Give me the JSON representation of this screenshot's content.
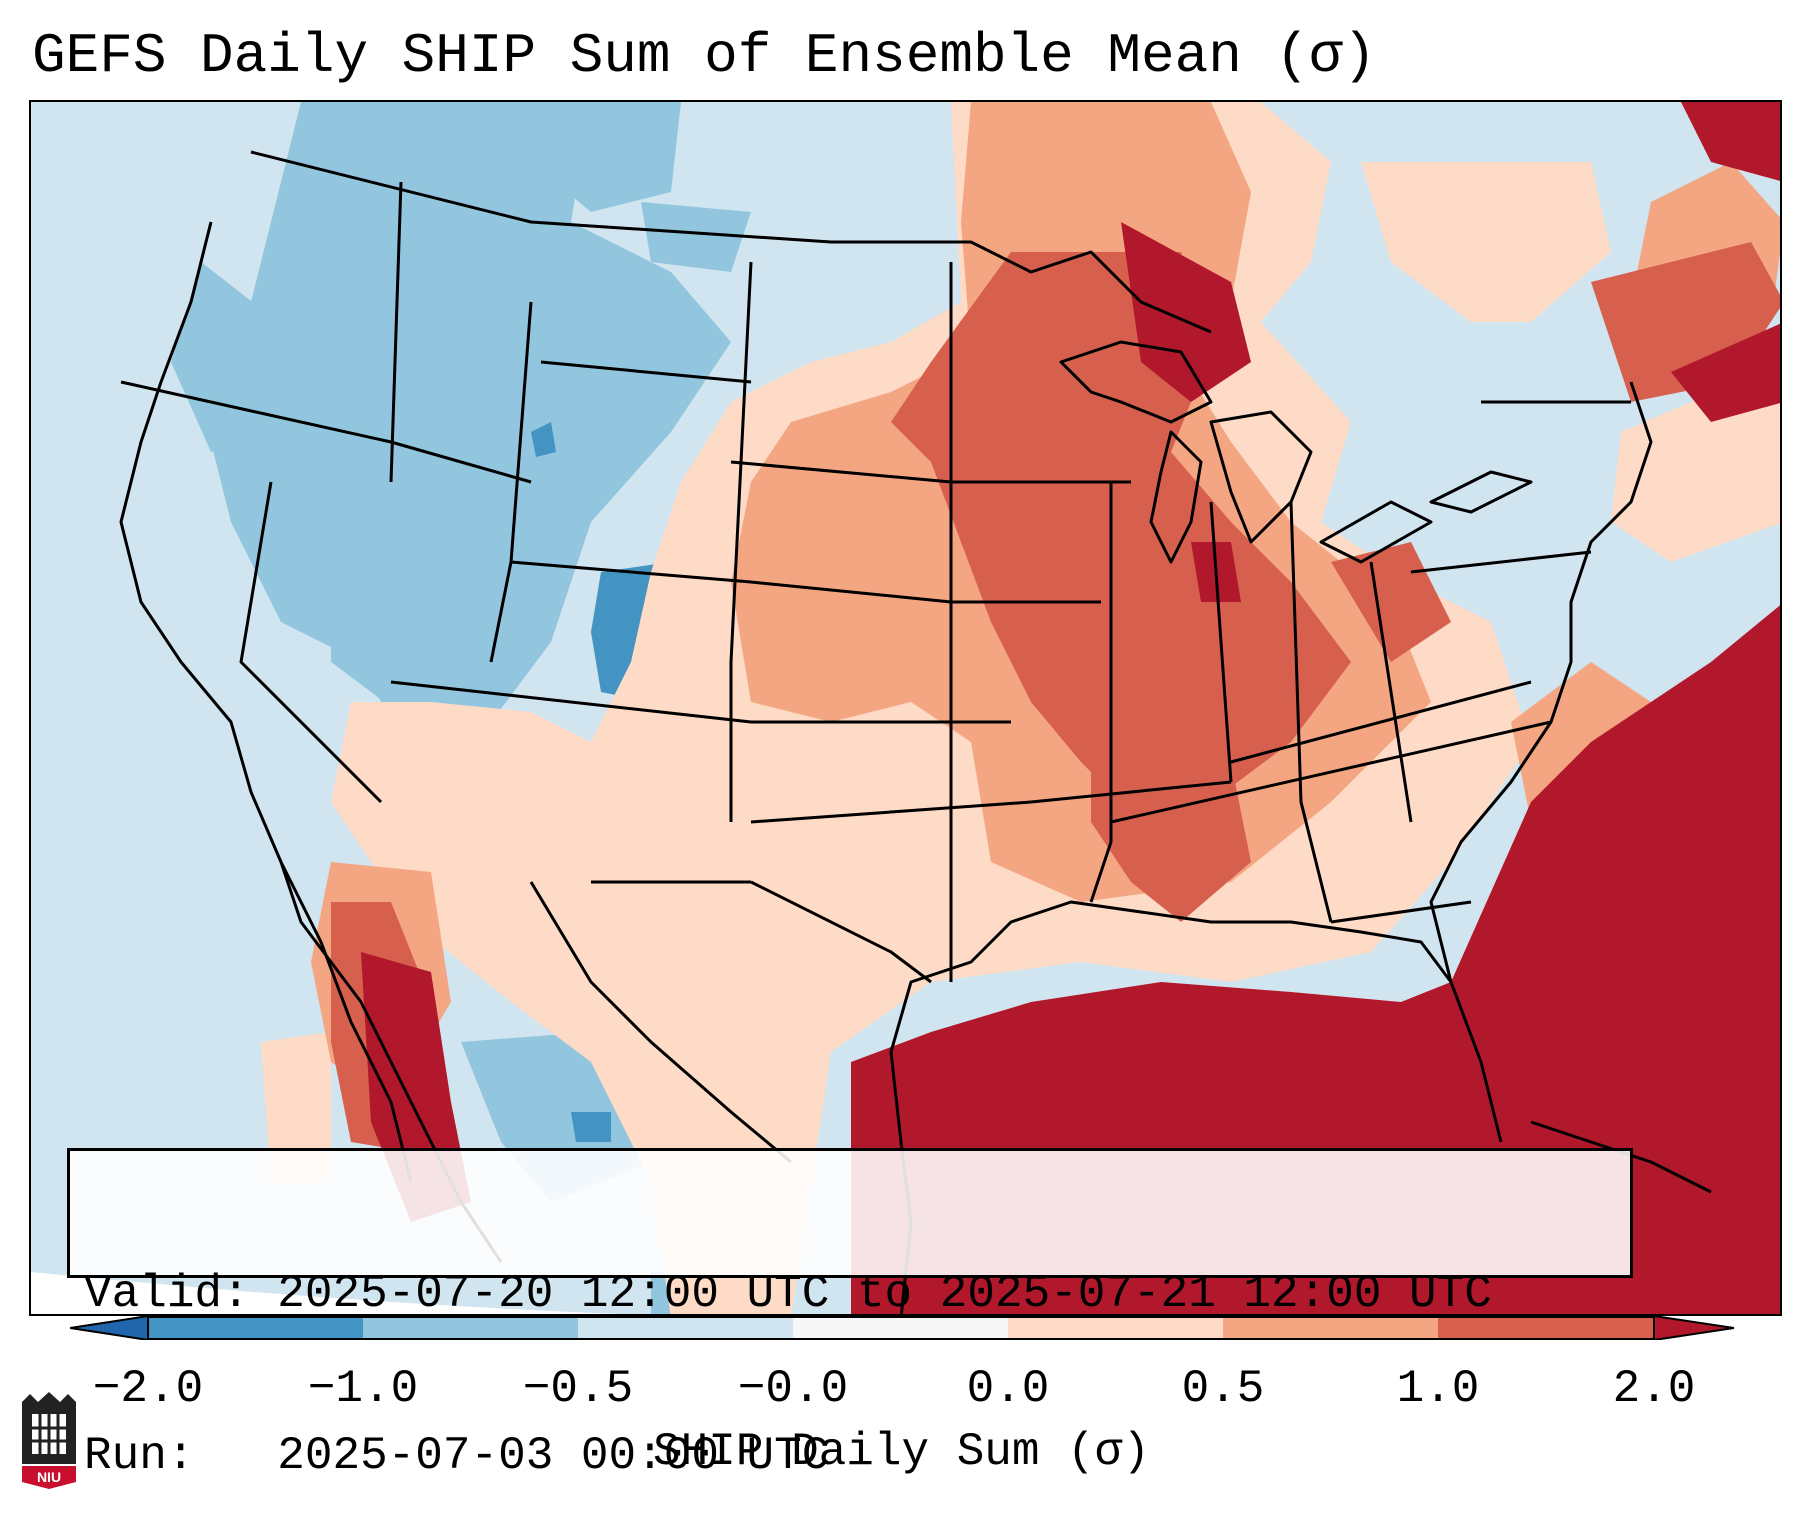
{
  "title": "GEFS Daily SHIP Sum of Ensemble Mean (σ)",
  "info": {
    "valid_label": "Valid:",
    "valid_value": "2025-07-20 12:00 UTC to 2025-07-21 12:00 UTC",
    "run_label": "Run:",
    "run_value": "2025-07-03 00:00 UTC"
  },
  "colorbar": {
    "label": "SHIP Daily Sum (σ)",
    "ticks": [
      "−2.0",
      "−1.0",
      "−0.5",
      "−0.0",
      "0.0",
      "0.5",
      "1.0",
      "2.0"
    ],
    "bins": [
      {
        "from": "−2.0",
        "to": "−1.0",
        "color": "#4393c3"
      },
      {
        "from": "−1.0",
        "to": "−0.5",
        "color": "#92c5de"
      },
      {
        "from": "−0.5",
        "to": "−0.0",
        "color": "#d1e5f0"
      },
      {
        "from": "−0.0",
        "to": "0.0",
        "color": "#f7f7f7"
      },
      {
        "from": "0.0",
        "to": "0.5",
        "color": "#fddbc7"
      },
      {
        "from": "0.5",
        "to": "1.0",
        "color": "#f4a582"
      },
      {
        "from": "1.0",
        "to": "2.0",
        "color": "#d6604d"
      }
    ],
    "under_color": "#2166ac",
    "over_color": "#b2182b"
  },
  "logo": {
    "text": "NIU"
  }
}
